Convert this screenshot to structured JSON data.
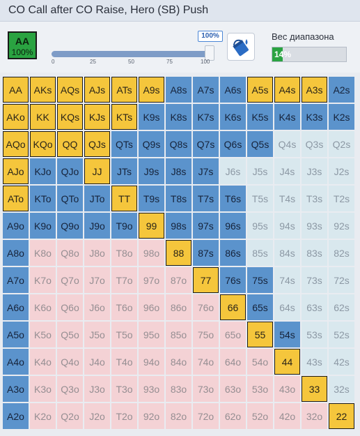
{
  "header": {
    "title": "CO Call after CO Raise, Hero (SB) Push"
  },
  "selected_hand": {
    "hand": "AA",
    "percent": "100%"
  },
  "slider": {
    "value_label": "100%",
    "value": 100,
    "ticks": [
      "0",
      "25",
      "50",
      "75",
      "100"
    ]
  },
  "paint_button": {
    "icon": "paint-bucket-icon"
  },
  "range": {
    "label": "Вес диапазона",
    "percent_label": "14%",
    "value": 14
  },
  "colors": {
    "push": "#f5c63c",
    "call": "#5b93cc",
    "empty_suited": "#d9e8ee",
    "empty_offsuit": "#f4d2d5",
    "accent_green": "#2aa341"
  },
  "grid": {
    "rows": [
      [
        [
          "AA",
          "y"
        ],
        [
          "AKs",
          "y"
        ],
        [
          "AQs",
          "y"
        ],
        [
          "AJs",
          "y"
        ],
        [
          "ATs",
          "y"
        ],
        [
          "A9s",
          "y"
        ],
        [
          "A8s",
          "b"
        ],
        [
          "A7s",
          "b"
        ],
        [
          "A6s",
          "b"
        ],
        [
          "A5s",
          "y"
        ],
        [
          "A4s",
          "y"
        ],
        [
          "A3s",
          "y"
        ],
        [
          "A2s",
          "b"
        ]
      ],
      [
        [
          "AKo",
          "y"
        ],
        [
          "KK",
          "y"
        ],
        [
          "KQs",
          "y"
        ],
        [
          "KJs",
          "y"
        ],
        [
          "KTs",
          "y"
        ],
        [
          "K9s",
          "b"
        ],
        [
          "K8s",
          "b"
        ],
        [
          "K7s",
          "b"
        ],
        [
          "K6s",
          "b"
        ],
        [
          "K5s",
          "b"
        ],
        [
          "K4s",
          "b"
        ],
        [
          "K3s",
          "b"
        ],
        [
          "K2s",
          "b"
        ]
      ],
      [
        [
          "AQo",
          "y"
        ],
        [
          "KQo",
          "y"
        ],
        [
          "QQ",
          "y"
        ],
        [
          "QJs",
          "y"
        ],
        [
          "QTs",
          "b"
        ],
        [
          "Q9s",
          "b"
        ],
        [
          "Q8s",
          "b"
        ],
        [
          "Q7s",
          "b"
        ],
        [
          "Q6s",
          "b"
        ],
        [
          "Q5s",
          "b"
        ],
        [
          "Q4s",
          "e"
        ],
        [
          "Q3s",
          "e"
        ],
        [
          "Q2s",
          "e"
        ]
      ],
      [
        [
          "AJo",
          "y"
        ],
        [
          "KJo",
          "b"
        ],
        [
          "QJo",
          "b"
        ],
        [
          "JJ",
          "y"
        ],
        [
          "JTs",
          "b"
        ],
        [
          "J9s",
          "b"
        ],
        [
          "J8s",
          "b"
        ],
        [
          "J7s",
          "b"
        ],
        [
          "J6s",
          "e"
        ],
        [
          "J5s",
          "e"
        ],
        [
          "J4s",
          "e"
        ],
        [
          "J3s",
          "e"
        ],
        [
          "J2s",
          "e"
        ]
      ],
      [
        [
          "ATo",
          "y"
        ],
        [
          "KTo",
          "b"
        ],
        [
          "QTo",
          "b"
        ],
        [
          "JTo",
          "b"
        ],
        [
          "TT",
          "y"
        ],
        [
          "T9s",
          "b"
        ],
        [
          "T8s",
          "b"
        ],
        [
          "T7s",
          "b"
        ],
        [
          "T6s",
          "b"
        ],
        [
          "T5s",
          "e"
        ],
        [
          "T4s",
          "e"
        ],
        [
          "T3s",
          "e"
        ],
        [
          "T2s",
          "e"
        ]
      ],
      [
        [
          "A9o",
          "b"
        ],
        [
          "K9o",
          "b"
        ],
        [
          "Q9o",
          "b"
        ],
        [
          "J9o",
          "b"
        ],
        [
          "T9o",
          "b"
        ],
        [
          "99",
          "y"
        ],
        [
          "98s",
          "b"
        ],
        [
          "97s",
          "b"
        ],
        [
          "96s",
          "b"
        ],
        [
          "95s",
          "e"
        ],
        [
          "94s",
          "e"
        ],
        [
          "93s",
          "e"
        ],
        [
          "92s",
          "e"
        ]
      ],
      [
        [
          "A8o",
          "b"
        ],
        [
          "K8o",
          "e"
        ],
        [
          "Q8o",
          "e"
        ],
        [
          "J8o",
          "e"
        ],
        [
          "T8o",
          "e"
        ],
        [
          "98o",
          "e"
        ],
        [
          "88",
          "y"
        ],
        [
          "87s",
          "b"
        ],
        [
          "86s",
          "b"
        ],
        [
          "85s",
          "e"
        ],
        [
          "84s",
          "e"
        ],
        [
          "83s",
          "e"
        ],
        [
          "82s",
          "e"
        ]
      ],
      [
        [
          "A7o",
          "b"
        ],
        [
          "K7o",
          "e"
        ],
        [
          "Q7o",
          "e"
        ],
        [
          "J7o",
          "e"
        ],
        [
          "T7o",
          "e"
        ],
        [
          "97o",
          "e"
        ],
        [
          "87o",
          "e"
        ],
        [
          "77",
          "y"
        ],
        [
          "76s",
          "b"
        ],
        [
          "75s",
          "b"
        ],
        [
          "74s",
          "e"
        ],
        [
          "73s",
          "e"
        ],
        [
          "72s",
          "e"
        ]
      ],
      [
        [
          "A6o",
          "b"
        ],
        [
          "K6o",
          "e"
        ],
        [
          "Q6o",
          "e"
        ],
        [
          "J6o",
          "e"
        ],
        [
          "T6o",
          "e"
        ],
        [
          "96o",
          "e"
        ],
        [
          "86o",
          "e"
        ],
        [
          "76o",
          "e"
        ],
        [
          "66",
          "y"
        ],
        [
          "65s",
          "b"
        ],
        [
          "64s",
          "e"
        ],
        [
          "63s",
          "e"
        ],
        [
          "62s",
          "e"
        ]
      ],
      [
        [
          "A5o",
          "b"
        ],
        [
          "K5o",
          "e"
        ],
        [
          "Q5o",
          "e"
        ],
        [
          "J5o",
          "e"
        ],
        [
          "T5o",
          "e"
        ],
        [
          "95o",
          "e"
        ],
        [
          "85o",
          "e"
        ],
        [
          "75o",
          "e"
        ],
        [
          "65o",
          "e"
        ],
        [
          "55",
          "y"
        ],
        [
          "54s",
          "b"
        ],
        [
          "53s",
          "e"
        ],
        [
          "52s",
          "e"
        ]
      ],
      [
        [
          "A4o",
          "b"
        ],
        [
          "K4o",
          "e"
        ],
        [
          "Q4o",
          "e"
        ],
        [
          "J4o",
          "e"
        ],
        [
          "T4o",
          "e"
        ],
        [
          "94o",
          "e"
        ],
        [
          "84o",
          "e"
        ],
        [
          "74o",
          "e"
        ],
        [
          "64o",
          "e"
        ],
        [
          "54o",
          "e"
        ],
        [
          "44",
          "y"
        ],
        [
          "43s",
          "e"
        ],
        [
          "42s",
          "e"
        ]
      ],
      [
        [
          "A3o",
          "b"
        ],
        [
          "K3o",
          "e"
        ],
        [
          "Q3o",
          "e"
        ],
        [
          "J3o",
          "e"
        ],
        [
          "T3o",
          "e"
        ],
        [
          "93o",
          "e"
        ],
        [
          "83o",
          "e"
        ],
        [
          "73o",
          "e"
        ],
        [
          "63o",
          "e"
        ],
        [
          "53o",
          "e"
        ],
        [
          "43o",
          "e"
        ],
        [
          "33",
          "y"
        ],
        [
          "32s",
          "e"
        ]
      ],
      [
        [
          "A2o",
          "b"
        ],
        [
          "K2o",
          "e"
        ],
        [
          "Q2o",
          "e"
        ],
        [
          "J2o",
          "e"
        ],
        [
          "T2o",
          "e"
        ],
        [
          "92o",
          "e"
        ],
        [
          "82o",
          "e"
        ],
        [
          "72o",
          "e"
        ],
        [
          "62o",
          "e"
        ],
        [
          "52o",
          "e"
        ],
        [
          "42o",
          "e"
        ],
        [
          "32o",
          "e"
        ],
        [
          "22",
          "y"
        ]
      ]
    ]
  }
}
